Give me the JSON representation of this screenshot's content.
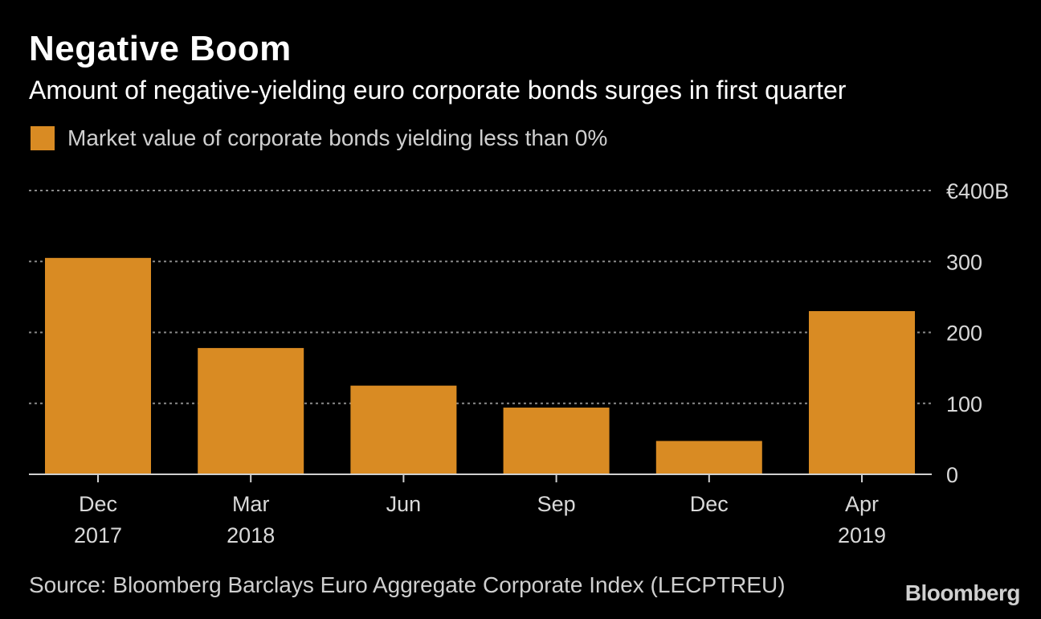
{
  "chart_data": {
    "type": "bar",
    "title": "Negative Boom",
    "subtitle": "Amount of negative-yielding euro corporate bonds surges in first quarter",
    "legend": [
      {
        "label": "Market value of corporate bonds yielding less than 0%",
        "color": "#d98b23"
      }
    ],
    "categories": [
      {
        "line1": "Dec",
        "line2": "2017"
      },
      {
        "line1": "Mar",
        "line2": "2018"
      },
      {
        "line1": "Jun",
        "line2": ""
      },
      {
        "line1": "Sep",
        "line2": ""
      },
      {
        "line1": "Dec",
        "line2": ""
      },
      {
        "line1": "Apr",
        "line2": "2019"
      }
    ],
    "values": [
      305,
      178,
      125,
      94,
      47,
      230
    ],
    "ylim": [
      0,
      400
    ],
    "yticks": [
      {
        "value": 400,
        "label": "€400B"
      },
      {
        "value": 300,
        "label": "300"
      },
      {
        "value": 200,
        "label": "200"
      },
      {
        "value": 100,
        "label": "100"
      },
      {
        "value": 0,
        "label": "0"
      }
    ],
    "ylabel": "",
    "xlabel": "",
    "grid": true,
    "bar_color": "#d98b23"
  },
  "footer": {
    "source": "Source: Bloomberg Barclays Euro Aggregate Corporate Index (LECPTREU)",
    "brand": "Bloomberg"
  }
}
